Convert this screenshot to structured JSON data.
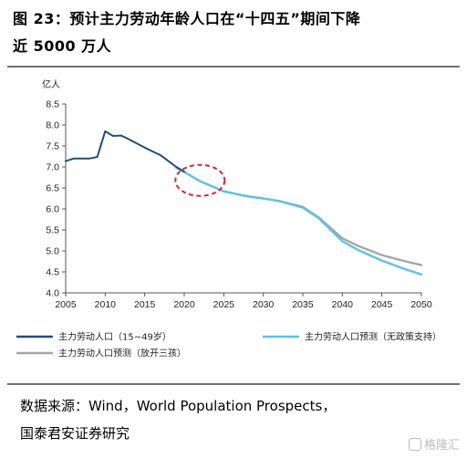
{
  "title": {
    "line1": "图 23：预计主力劳动年龄人口在“十四五”期间下降",
    "line2": "近 5000 万人"
  },
  "source": {
    "line1": "数据来源：Wind，World Population Prospects，",
    "line2": "国泰君安证券研究"
  },
  "watermark": "格隆汇",
  "chart_data": {
    "type": "line",
    "y_unit": "亿人",
    "ylim": [
      4.0,
      8.5
    ],
    "xlim": [
      2005,
      2050
    ],
    "y_ticks": [
      4.0,
      4.5,
      5.0,
      5.5,
      6.0,
      6.5,
      7.0,
      7.5,
      8.0,
      8.5
    ],
    "x_ticks": [
      2005,
      2010,
      2015,
      2020,
      2025,
      2030,
      2035,
      2040,
      2045,
      2050
    ],
    "grid": false,
    "legend_position": "bottom",
    "series": [
      {
        "name": "主力劳动人口（15~49岁）",
        "color": "#1f4e79",
        "x": [
          2005,
          2006,
          2007,
          2008,
          2009,
          2010,
          2011,
          2012,
          2013,
          2014,
          2015,
          2016,
          2017,
          2018,
          2019,
          2020
        ],
        "y": [
          7.14,
          7.2,
          7.2,
          7.2,
          7.24,
          7.85,
          7.74,
          7.75,
          7.66,
          7.56,
          7.46,
          7.37,
          7.28,
          7.14,
          7.0,
          6.89
        ]
      },
      {
        "name": "主力劳动人口预测（无政策支持）",
        "color": "#5ec3e3",
        "x": [
          2019,
          2020,
          2022,
          2025,
          2028,
          2030,
          2032,
          2035,
          2037,
          2040,
          2042,
          2045,
          2048,
          2050
        ],
        "y": [
          6.98,
          6.88,
          6.66,
          6.42,
          6.3,
          6.25,
          6.19,
          6.03,
          5.78,
          5.23,
          5.02,
          4.77,
          4.56,
          4.44
        ]
      },
      {
        "name": "主力劳动人口预测（放开三孩）",
        "color": "#a6a6a6",
        "x": [
          2019,
          2020,
          2022,
          2025,
          2028,
          2030,
          2032,
          2035,
          2037,
          2040,
          2042,
          2045,
          2048,
          2050
        ],
        "y": [
          6.98,
          6.88,
          6.66,
          6.42,
          6.3,
          6.25,
          6.19,
          6.05,
          5.8,
          5.3,
          5.12,
          4.9,
          4.75,
          4.66
        ]
      }
    ],
    "annotation": {
      "shape": "dashed-ellipse",
      "color": "#d9262b",
      "center_x": 2022,
      "center_y": 6.68
    }
  }
}
